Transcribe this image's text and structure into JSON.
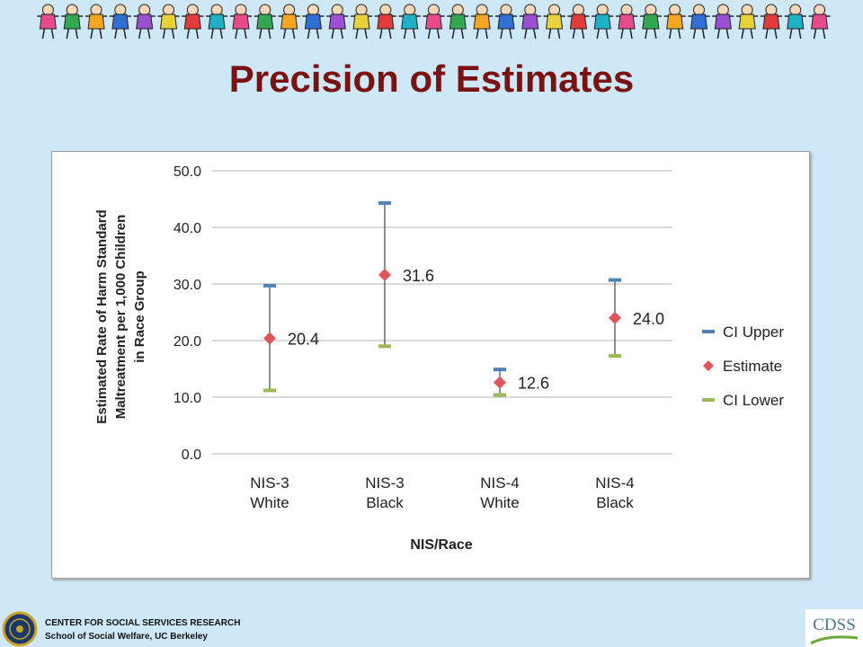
{
  "slide": {
    "title": "Precision of Estimates"
  },
  "banner": {
    "figure_colors": [
      "#e84b8a",
      "#33a852",
      "#f5a623",
      "#2f6fd6",
      "#9b4fd1",
      "#e8d23a",
      "#e23b3b",
      "#1fb1c6"
    ]
  },
  "footer": {
    "line1": "CENTER FOR SOCIAL SERVICES RESEARCH",
    "line2": "School of Social Welfare, UC Berkeley",
    "logo_text": "CDSS"
  },
  "chart_data": {
    "type": "scatter",
    "categories": [
      [
        "NIS-3",
        "White"
      ],
      [
        "NIS-3",
        "Black"
      ],
      [
        "NIS-4",
        "White"
      ],
      [
        "NIS-4",
        "Black"
      ]
    ],
    "series": [
      {
        "name": "CI Upper",
        "values": [
          29.7,
          44.3,
          14.9,
          30.7
        ],
        "color": "#4f81bd",
        "marker": "dash"
      },
      {
        "name": "Estimate",
        "values": [
          20.4,
          31.6,
          12.6,
          24.0
        ],
        "color": "#e0555a",
        "marker": "diamond"
      },
      {
        "name": "CI Lower",
        "values": [
          11.2,
          19.0,
          10.4,
          17.3
        ],
        "color": "#9bbb59",
        "marker": "dash"
      }
    ],
    "data_labels": [
      "20.4",
      "31.6",
      "12.6",
      "24.0"
    ],
    "xlabel": "NIS/Race",
    "ylabel_lines": [
      "Estimated Rate of Harm Standard",
      "Maltreatment per 1,000 Children",
      "in Race Group"
    ],
    "yticks": [
      "0.0",
      "10.0",
      "20.0",
      "30.0",
      "40.0",
      "50.0"
    ],
    "ylim": [
      0,
      50
    ],
    "grid": true,
    "legend_position": "right"
  }
}
